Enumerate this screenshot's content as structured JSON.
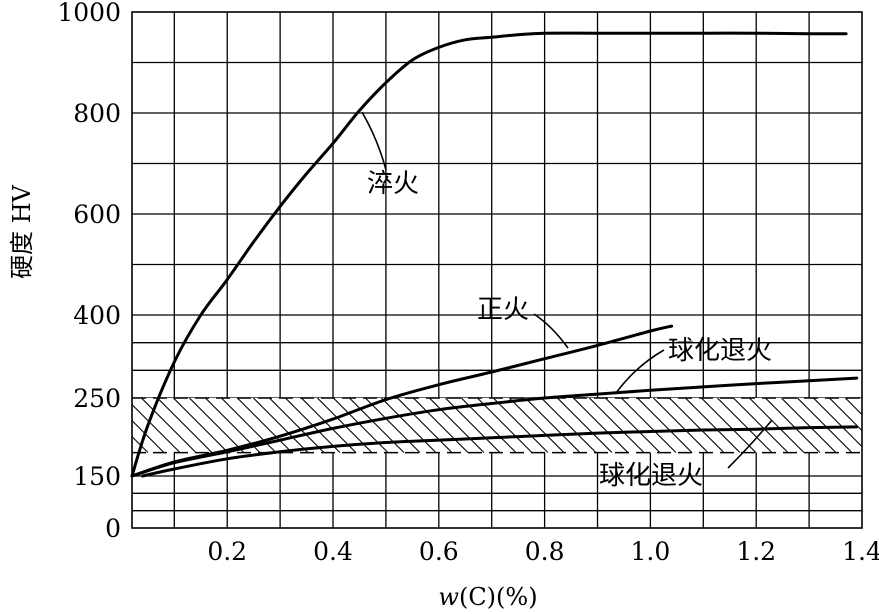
{
  "chart_data": {
    "type": "line",
    "xlabel_var": "w",
    "xlabel_rest": "(C)(%)",
    "ylabel": "硬度 HV",
    "xlim": [
      0.02,
      1.4
    ],
    "x_ticks": [
      {
        "value": 0.2,
        "label": "0.2"
      },
      {
        "value": 0.4,
        "label": "0.4"
      },
      {
        "value": 0.6,
        "label": "0.6"
      },
      {
        "value": 0.8,
        "label": "0.8"
      },
      {
        "value": 1.0,
        "label": "1.0"
      },
      {
        "value": 1.2,
        "label": "1.2"
      },
      {
        "value": 1.4,
        "label": "1.4"
      }
    ],
    "y_ticks": [
      {
        "value": 0,
        "label": "0"
      },
      {
        "value": 150,
        "label": "150"
      },
      {
        "value": 250,
        "label": "250"
      },
      {
        "value": 400,
        "label": "400"
      },
      {
        "value": 600,
        "label": "600"
      },
      {
        "value": 800,
        "label": "800"
      },
      {
        "value": 1000,
        "label": "1000"
      }
    ],
    "y_axis_note": "non-linear: 0 to 150 compressed, 150 to 250 expanded",
    "grid": true,
    "machinable_band": {
      "low": 180,
      "high": 250
    },
    "series": [
      {
        "name": "淬火",
        "x": [
          0.02,
          0.05,
          0.1,
          0.15,
          0.2,
          0.25,
          0.3,
          0.35,
          0.4,
          0.45,
          0.5,
          0.55,
          0.6,
          0.65,
          0.7,
          0.75,
          0.8,
          0.9,
          1.0,
          1.1,
          1.2,
          1.3,
          1.37
        ],
        "y": [
          150,
          215,
          315,
          400,
          470,
          545,
          615,
          680,
          740,
          805,
          860,
          905,
          930,
          945,
          950,
          955,
          958,
          958,
          958,
          958,
          958,
          957,
          957
        ]
      },
      {
        "name": "正火",
        "x": [
          0.02,
          0.1,
          0.2,
          0.3,
          0.4,
          0.5,
          0.6,
          0.7,
          0.8,
          0.9,
          1.0,
          1.04
        ],
        "y": [
          150,
          168,
          183,
          201,
          223,
          248,
          274,
          297,
          321,
          345,
          371,
          380
        ]
      },
      {
        "name": "球化退火",
        "x": [
          0.02,
          0.1,
          0.2,
          0.3,
          0.4,
          0.5,
          0.6,
          0.7,
          0.8,
          0.9,
          1.0,
          1.1,
          1.2,
          1.3,
          1.39
        ],
        "y": [
          150,
          167,
          181,
          196,
          211,
          224,
          235,
          243,
          250,
          257,
          264,
          270,
          276,
          281,
          286
        ]
      },
      {
        "name": "球化退火",
        "x": [
          0.04,
          0.1,
          0.2,
          0.3,
          0.4,
          0.5,
          0.6,
          0.7,
          0.8,
          0.9,
          1.0,
          1.1,
          1.2,
          1.3,
          1.39
        ],
        "y": [
          150,
          159,
          172,
          181,
          188,
          193,
          196,
          199,
          202,
          205,
          207,
          209,
          210,
          212,
          213
        ]
      }
    ]
  }
}
